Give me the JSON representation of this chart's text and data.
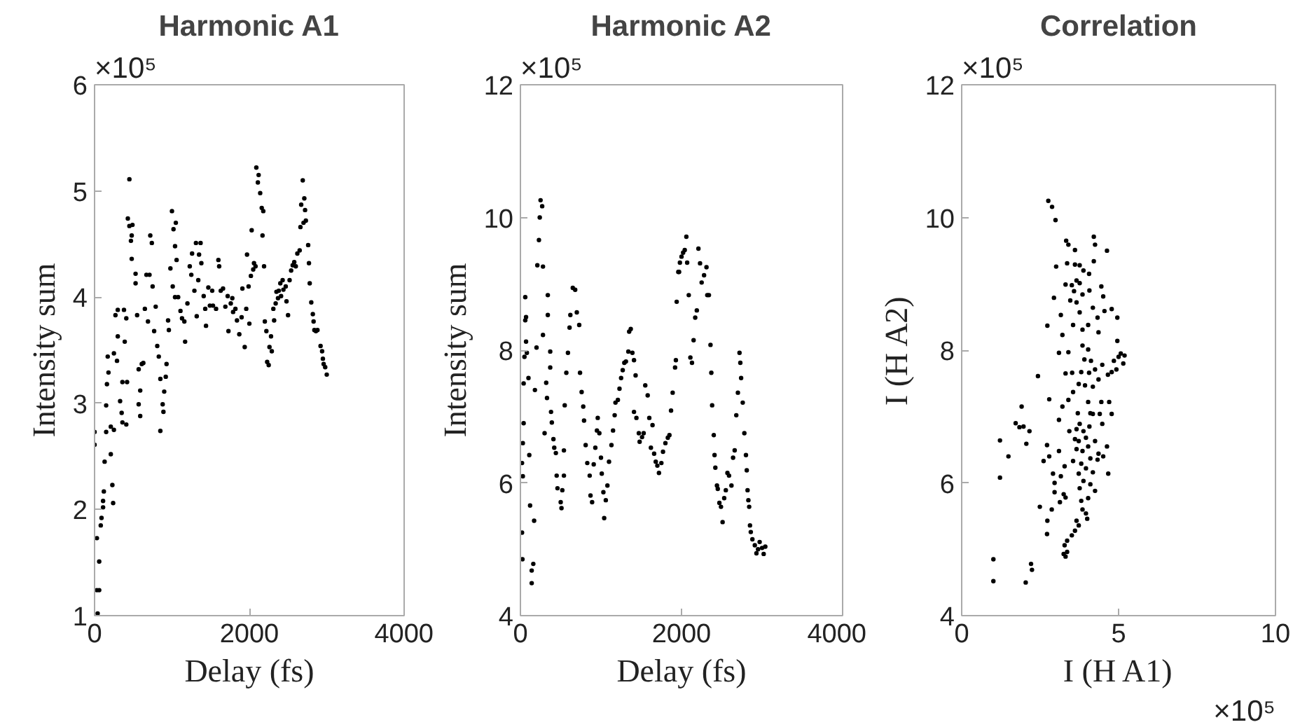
{
  "chart_data": [
    {
      "type": "scatter",
      "title": "Harmonic A1",
      "xlabel": "Delay (fs)",
      "ylabel": "Intensity sum",
      "annotations": [
        "×10⁵"
      ],
      "xlim": [
        0,
        4000
      ],
      "ylim": [
        1,
        6
      ],
      "xticks": [
        0,
        2000,
        4000
      ],
      "yticks": [
        1,
        2,
        3,
        4,
        5,
        6
      ],
      "grid": false,
      "marker": "circle",
      "series": [
        {
          "color": "#000000",
          "x": [
            0,
            0,
            40,
            30,
            60,
            60,
            30,
            80,
            90,
            110,
            110,
            120,
            130,
            150,
            150,
            160,
            180,
            170,
            210,
            230,
            240,
            210,
            250,
            250,
            290,
            300,
            270,
            300,
            330,
            350,
            360,
            360,
            380,
            390,
            410,
            420,
            410,
            430,
            450,
            450,
            470,
            480,
            490,
            480,
            530,
            530,
            550,
            570,
            590,
            570,
            590,
            610,
            630,
            650,
            670,
            710,
            690,
            720,
            740,
            750,
            770,
            790,
            810,
            830,
            850,
            880,
            850,
            890,
            900,
            920,
            930,
            950,
            960,
            980,
            1000,
            1020,
            1040,
            1050,
            1060,
            1010,
            1040,
            1080,
            1110,
            1130,
            1160,
            1170,
            1200,
            1230,
            1250,
            1260,
            1290,
            1310,
            1320,
            1340,
            1350,
            1370,
            1380,
            1410,
            1430,
            1440,
            1470,
            1490,
            1520,
            1530,
            1570,
            1600,
            1610,
            1630,
            1660,
            1690,
            1720,
            1730,
            1760,
            1780,
            1790,
            1820,
            1840,
            1870,
            1900,
            1910,
            1940,
            1960,
            1970,
            1990,
            2000,
            2020,
            2030,
            2050,
            2060,
            2080,
            2090,
            2110,
            2120,
            2140,
            2160,
            2170,
            2180,
            2190,
            2200,
            2220,
            2230,
            2250,
            2260,
            2280,
            2290,
            2310,
            2320,
            2340,
            2350,
            2370,
            2380,
            2400,
            2410,
            2430,
            2440,
            2470,
            2480,
            2500,
            2520,
            2540,
            2560,
            2580,
            2600,
            2620,
            2650,
            2660,
            2670,
            2690,
            2700,
            2710,
            2720,
            2730,
            2760,
            2770,
            2780,
            2800,
            2820,
            2830,
            2840,
            2860,
            2880,
            2920,
            2940,
            2950,
            2960,
            2980,
            3000
          ],
          "values": [
            2.73,
            2.61,
            1.02,
            1.24,
            1.24,
            1.51,
            1.73,
            1.85,
            1.92,
            2.02,
            2.08,
            2.17,
            2.45,
            2.73,
            2.98,
            3.18,
            3.29,
            3.44,
            2.52,
            2.23,
            2.06,
            2.78,
            2.75,
            3.47,
            3.4,
            3.63,
            3.83,
            3.88,
            3.02,
            2.91,
            3.2,
            2.82,
            3.88,
            3.58,
            3.8,
            3.2,
            2.8,
            4.74,
            5.11,
            4.67,
            4.53,
            4.58,
            4.68,
            4.36,
            4.22,
            4.13,
            3.83,
            3.32,
            3.12,
            2.99,
            2.88,
            3.37,
            3.38,
            3.89,
            4.21,
            4.21,
            3.77,
            4.58,
            4.51,
            4.1,
            3.68,
            3.91,
            3.54,
            3.44,
            3.23,
            2.99,
            2.74,
            2.92,
            3.11,
            3.25,
            3.37,
            3.78,
            3.69,
            4.27,
            4.81,
            4.64,
            4.48,
            4.7,
            4.35,
            4.1,
            4.0,
            4.0,
            3.87,
            3.8,
            3.77,
            3.58,
            3.94,
            4.29,
            4.21,
            4.41,
            4.06,
            4.51,
            3.82,
            4.16,
            4.4,
            4.51,
            4.32,
            4.01,
            3.89,
            3.73,
            4.09,
            3.92,
            4.06,
            3.92,
            3.89,
            4.35,
            4.29,
            4.06,
            4.08,
            3.91,
            4.01,
            3.68,
            3.94,
            3.99,
            3.86,
            3.89,
            3.78,
            3.65,
            3.81,
            4.08,
            3.53,
            3.89,
            4.4,
            4.1,
            3.75,
            4.2,
            4.63,
            4.26,
            4.32,
            4.29,
            5.22,
            5.08,
            5.15,
            4.98,
            4.84,
            4.58,
            4.81,
            4.29,
            3.77,
            3.68,
            3.39,
            3.36,
            3.53,
            3.63,
            3.49,
            3.89,
            3.78,
            3.94,
            4.05,
            3.99,
            4.06,
            4.13,
            4.01,
            4.16,
            4.07,
            4.1,
            3.96,
            3.83,
            4.16,
            4.25,
            4.3,
            4.33,
            4.29,
            4.41,
            4.44,
            4.66,
            4.87,
            5.1,
            4.7,
            4.93,
            4.82,
            4.72,
            4.49,
            4.32,
            4.13,
            3.95,
            3.84,
            3.77,
            3.69,
            3.68,
            3.69,
            3.54,
            3.49,
            3.42,
            3.37,
            3.34,
            3.27
          ]
        }
      ]
    },
    {
      "type": "scatter",
      "title": "Harmonic A2",
      "xlabel": "Delay (fs)",
      "ylabel": "Intensity sum",
      "annotations": [
        "×10⁵"
      ],
      "xlim": [
        0,
        4000
      ],
      "ylim": [
        4,
        12
      ],
      "xticks": [
        0,
        2000,
        4000
      ],
      "yticks": [
        4,
        6,
        8,
        10,
        12
      ],
      "grid": false,
      "marker": "circle",
      "series": [
        {
          "color": "#000000",
          "x": [
            20,
            25,
            20,
            30,
            40,
            40,
            30,
            50,
            60,
            70,
            60,
            70,
            80,
            100,
            110,
            120,
            140,
            140,
            160,
            170,
            180,
            200,
            210,
            230,
            240,
            250,
            270,
            280,
            280,
            300,
            320,
            330,
            340,
            340,
            370,
            370,
            380,
            390,
            410,
            420,
            440,
            450,
            460,
            500,
            510,
            520,
            540,
            540,
            550,
            570,
            590,
            610,
            620,
            650,
            680,
            700,
            730,
            740,
            760,
            780,
            790,
            810,
            830,
            860,
            870,
            890,
            910,
            930,
            950,
            960,
            980,
            1000,
            1010,
            1030,
            1040,
            1060,
            1080,
            1100,
            1130,
            1150,
            1170,
            1180,
            1210,
            1230,
            1250,
            1270,
            1290,
            1310,
            1340,
            1350,
            1370,
            1390,
            1410,
            1430,
            1410,
            1440,
            1470,
            1480,
            1510,
            1530,
            1550,
            1580,
            1600,
            1620,
            1640,
            1660,
            1680,
            1700,
            1720,
            1750,
            1770,
            1800,
            1830,
            1850,
            1870,
            1890,
            1920,
            1930,
            1940,
            1960,
            1970,
            1980,
            2000,
            2020,
            2040,
            2060,
            2070,
            2090,
            2110,
            2130,
            2150,
            2170,
            2190,
            2210,
            2230,
            2250,
            2280,
            2310,
            2320,
            2340,
            2360,
            2370,
            2380,
            2400,
            2410,
            2420,
            2440,
            2450,
            2470,
            2490,
            2510,
            2530,
            2550,
            2570,
            2590,
            2620,
            2640,
            2660,
            2680,
            2700,
            2720,
            2730,
            2740,
            2760,
            2780,
            2800,
            2810,
            2820,
            2830,
            2840,
            2850,
            2860,
            2880,
            2910,
            2930,
            2950,
            2970,
            3000,
            3020,
            3040
          ],
          "values": [
            5.25,
            4.85,
            6.3,
            6.6,
            6.9,
            7.5,
            6.1,
            7.9,
            8.8,
            8.5,
            8.45,
            8.13,
            7.96,
            7.58,
            6.42,
            5.66,
            4.68,
            4.49,
            4.78,
            5.43,
            7.4,
            8.04,
            9.28,
            9.66,
            10.0,
            10.26,
            10.17,
            9.26,
            8.23,
            6.75,
            7.51,
            7.28,
            8.83,
            8.53,
            7.98,
            7.74,
            7.07,
            6.91,
            6.66,
            6.53,
            6.45,
            6.11,
            5.92,
            5.71,
            5.62,
            5.89,
            6.11,
            6.49,
            7.17,
            7.66,
            7.96,
            8.34,
            8.53,
            8.94,
            8.91,
            8.57,
            8.38,
            7.66,
            7.37,
            7.15,
            6.94,
            6.57,
            6.3,
            6.11,
            5.81,
            5.71,
            6.28,
            6.53,
            6.79,
            6.98,
            6.75,
            6.38,
            6.14,
            5.86,
            5.47,
            5.74,
            5.96,
            6.32,
            6.57,
            6.79,
            7.02,
            7.21,
            7.25,
            7.42,
            7.58,
            7.7,
            7.81,
            7.83,
            7.98,
            8.28,
            8.32,
            7.96,
            7.85,
            7.62,
            7.07,
            6.98,
            6.75,
            6.62,
            6.69,
            6.75,
            7.47,
            7.32,
            6.98,
            6.53,
            6.87,
            6.44,
            6.32,
            6.26,
            6.15,
            6.3,
            6.47,
            6.6,
            6.68,
            6.72,
            7.09,
            7.36,
            7.74,
            7.85,
            8.73,
            9.18,
            9.18,
            9.32,
            9.41,
            9.47,
            9.51,
            9.71,
            9.32,
            8.83,
            7.89,
            7.81,
            8.15,
            8.49,
            8.6,
            9.53,
            9.31,
            9.02,
            9.13,
            9.25,
            8.83,
            8.83,
            8.08,
            7.66,
            7.17,
            6.72,
            6.42,
            6.23,
            5.96,
            5.91,
            5.7,
            5.64,
            5.41,
            5.77,
            5.89,
            6.15,
            6.11,
            5.96,
            6.38,
            6.49,
            7.02,
            7.36,
            7.96,
            7.81,
            7.58,
            7.21,
            6.75,
            6.42,
            6.19,
            5.89,
            5.74,
            5.64,
            5.36,
            5.26,
            5.15,
            5.06,
            4.94,
            5.0,
            5.11,
            5.02,
            4.93,
            5.04
          ]
        }
      ]
    },
    {
      "type": "scatter",
      "title": "Correlation",
      "xlabel": "I (H A1)",
      "ylabel": "I (H A2)",
      "annotations": [
        "×10⁵",
        "×10⁵"
      ],
      "xlim": [
        0,
        10
      ],
      "ylim": [
        4,
        12
      ],
      "xticks": [
        0,
        5,
        10
      ],
      "yticks": [
        4,
        6,
        8,
        10,
        12
      ],
      "grid": false,
      "marker": "circle",
      "series": [
        {
          "color": "#000000",
          "x": [
            2.76,
            2.88,
            2.99,
            3.33,
            3.4,
            3.61,
            4.21,
            4.25,
            4.63,
            4.21,
            3.01,
            3.36,
            3.61,
            3.76,
            3.88,
            4.06,
            3.31,
            3.51,
            3.66,
            3.76,
            3.58,
            3.46,
            3.66,
            3.85,
            4.07,
            4.45,
            4.51,
            2.94,
            3.16,
            3.76,
            4.18,
            4.33,
            4.55,
            4.78,
            4.96,
            2.73,
            3.21,
            3.55,
            3.85,
            4.03,
            4.36,
            4.96,
            3.1,
            3.4,
            3.85,
            4.03,
            3.91,
            4.12,
            4.85,
            5.0,
            5.07,
            5.15,
            5.19,
            4.93,
            2.43,
            3.31,
            3.52,
            3.81,
            4.06,
            4.25,
            4.48,
            4.66,
            4.78,
            3.55,
            3.73,
            3.93,
            4.18,
            4.36,
            2.79,
            3.21,
            3.4,
            3.7,
            4.03,
            4.18,
            4.45,
            4.7,
            1.91,
            3.1,
            3.76,
            4.1,
            4.4,
            4.78,
            1.72,
            1.97,
            1.84,
            2.16,
            3.43,
            3.66,
            3.88,
            4.07,
            4.48,
            3.61,
            3.73,
            3.96,
            4.25,
            4.63,
            1.22,
            2.06,
            2.72,
            3.1,
            3.66,
            3.85,
            4.03,
            4.36,
            4.51,
            1.49,
            2.79,
            2.61,
            3.55,
            3.81,
            4.1,
            4.33,
            3.28,
            3.96,
            2.91,
            3.16,
            3.73,
            4.18,
            4.67,
            1.22,
            2.96,
            3.88,
            4.1,
            3.76,
            4.25,
            2.96,
            3.25,
            3.31,
            3.81,
            4.03,
            3.13,
            2.49,
            2.87,
            3.85,
            3.96,
            3.66,
            4.0,
            2.73,
            3.73,
            3.61,
            3.51,
            2.72,
            3.36,
            3.28,
            3.36,
            3.25,
            3.31,
            1.01,
            1.01,
            2.04,
            2.21,
            2.24
          ],
          "values": [
            10.25,
            10.16,
            9.96,
            9.65,
            9.59,
            9.51,
            9.71,
            9.59,
            9.5,
            9.34,
            9.26,
            9.31,
            9.29,
            9.28,
            9.2,
            9.15,
            8.99,
            8.98,
            9.05,
            9.01,
            8.89,
            8.75,
            8.72,
            8.84,
            8.9,
            8.96,
            8.81,
            8.79,
            8.53,
            8.57,
            8.64,
            8.49,
            8.59,
            8.62,
            8.49,
            8.37,
            8.23,
            8.38,
            8.31,
            8.38,
            8.27,
            8.14,
            7.96,
            7.97,
            8.07,
            8.01,
            7.86,
            7.84,
            7.84,
            7.9,
            7.95,
            7.8,
            7.92,
            7.71,
            7.61,
            7.65,
            7.66,
            7.67,
            7.66,
            7.71,
            7.78,
            7.63,
            7.67,
            7.37,
            7.49,
            7.47,
            7.45,
            7.56,
            7.26,
            7.15,
            7.25,
            7.05,
            7.22,
            7.04,
            7.22,
            7.22,
            7.15,
            6.95,
            6.89,
            7.05,
            7.04,
            7.04,
            6.9,
            6.85,
            6.84,
            6.78,
            6.78,
            6.81,
            6.78,
            6.85,
            6.89,
            6.66,
            6.63,
            6.68,
            6.63,
            6.55,
            6.64,
            6.59,
            6.57,
            6.48,
            6.51,
            6.48,
            6.55,
            6.44,
            6.4,
            6.4,
            6.4,
            6.33,
            6.33,
            6.29,
            6.37,
            6.35,
            6.25,
            6.22,
            6.14,
            6.1,
            6.14,
            6.16,
            6.14,
            6.08,
            6.0,
            6.03,
            5.98,
            5.92,
            5.88,
            5.86,
            5.83,
            5.78,
            5.73,
            5.77,
            5.71,
            5.64,
            5.6,
            5.6,
            5.54,
            5.43,
            5.46,
            5.43,
            5.36,
            5.28,
            5.21,
            5.23,
            5.13,
            5.06,
            4.96,
            4.93,
            4.89,
            4.85,
            4.52,
            4.5,
            4.78,
            4.69
          ]
        }
      ]
    }
  ]
}
